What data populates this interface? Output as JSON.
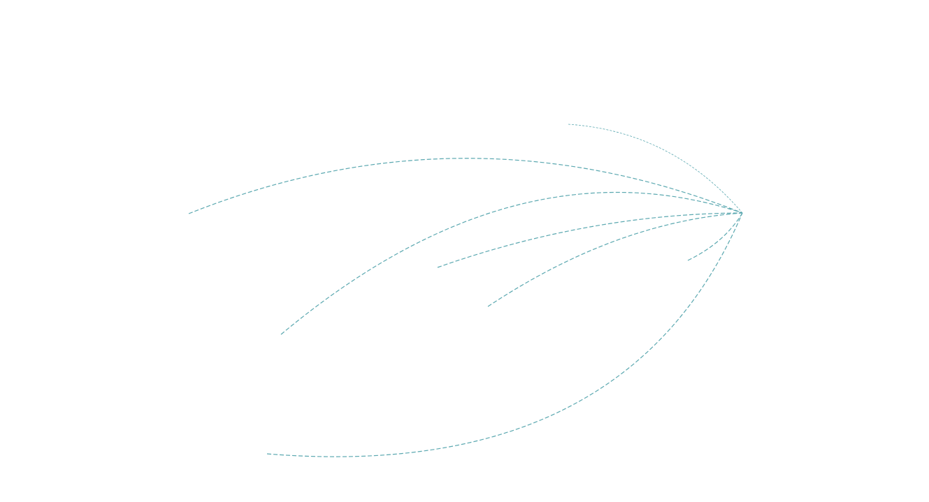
{
  "colors": {
    "flow_line": "#5ba8b0",
    "background": "#ffffff"
  },
  "flow_map": {
    "line_style": "dashed",
    "flow_count": 7
  }
}
